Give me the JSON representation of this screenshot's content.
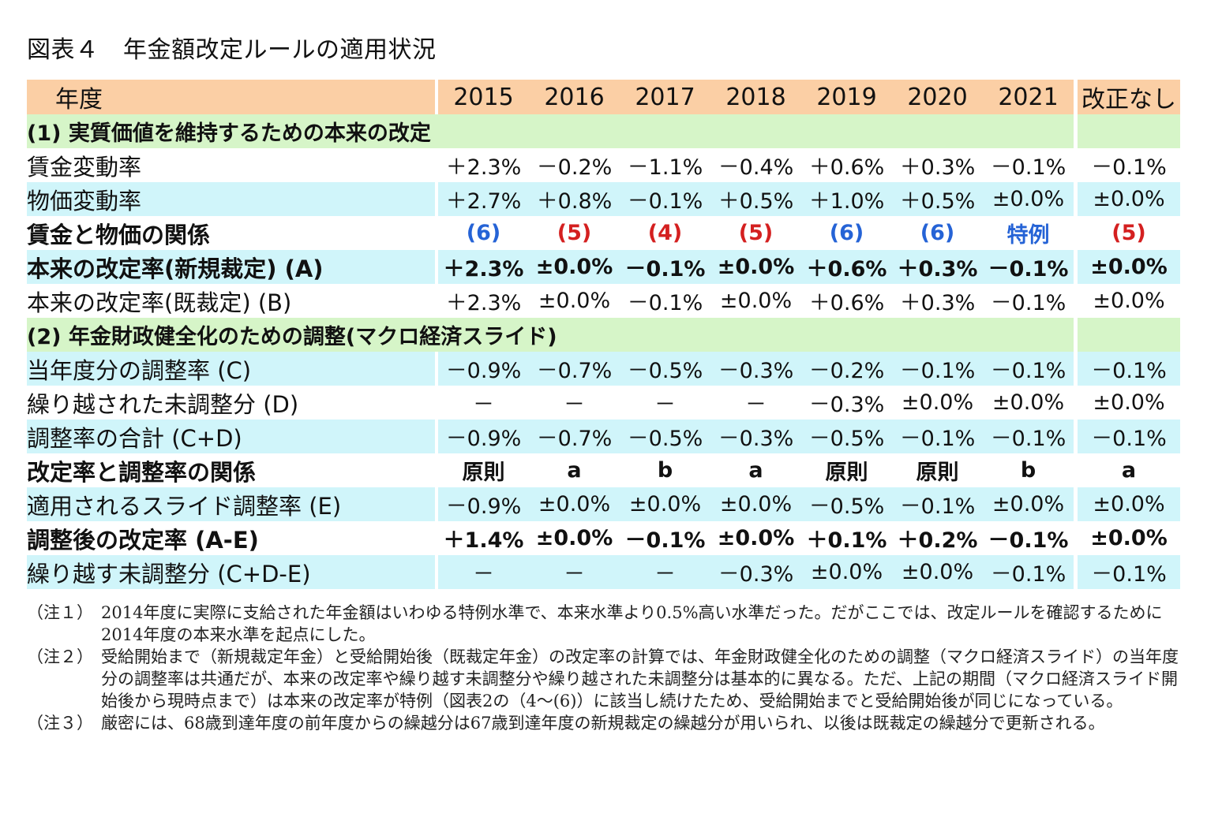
{
  "title": "図表４　年金額改定ルールの適用状況",
  "header": {
    "label": "年度",
    "columns": [
      "2015",
      "2016",
      "2017",
      "2018",
      "2019",
      "2020",
      "2021",
      "改正なし"
    ]
  },
  "section1": "(1) 実質価値を維持するための本来の改定",
  "section2": "(2) 年金財政健全化のための調整(マクロ経済スライド)",
  "rows": [
    {
      "label": "賃金変動率",
      "values": [
        "＋2.3%",
        "－0.2%",
        "－1.1%",
        "－0.4%",
        "＋0.6%",
        "＋0.3%",
        "－0.1%",
        "－0.1%"
      ]
    },
    {
      "label": "物価変動率",
      "values": [
        "＋2.7%",
        "＋0.8%",
        "－0.1%",
        "＋0.5%",
        "＋1.0%",
        "＋0.5%",
        "±0.0%",
        "±0.0%"
      ]
    },
    {
      "label": "賃金と物価の関係",
      "values": [
        "(6)",
        "(5)",
        "(4)",
        "(5)",
        "(6)",
        "(6)",
        "特例",
        "(5)"
      ]
    },
    {
      "label": "本来の改定率(新規裁定) (A)",
      "values": [
        "＋2.3%",
        "±0.0%",
        "－0.1%",
        "±0.0%",
        "＋0.6%",
        "＋0.3%",
        "－0.1%",
        "±0.0%"
      ]
    },
    {
      "label": "本来の改定率(既裁定) (B)",
      "values": [
        "＋2.3%",
        "±0.0%",
        "－0.1%",
        "±0.0%",
        "＋0.6%",
        "＋0.3%",
        "－0.1%",
        "±0.0%"
      ]
    },
    {
      "label": "当年度分の調整率 (C)",
      "values": [
        "－0.9%",
        "－0.7%",
        "－0.5%",
        "－0.3%",
        "－0.2%",
        "－0.1%",
        "－0.1%",
        "－0.1%"
      ]
    },
    {
      "label": "繰り越された未調整分 (D)",
      "values": [
        "－",
        "－",
        "－",
        "－",
        "－0.3%",
        "±0.0%",
        "±0.0%",
        "±0.0%"
      ]
    },
    {
      "label": "調整率の合計 (C+D)",
      "values": [
        "－0.9%",
        "－0.7%",
        "－0.5%",
        "－0.3%",
        "－0.5%",
        "－0.1%",
        "－0.1%",
        "－0.1%"
      ]
    },
    {
      "label": "改定率と調整率の関係",
      "values": [
        "原則",
        "a",
        "b",
        "a",
        "原則",
        "原則",
        "b",
        "a"
      ]
    },
    {
      "label": "適用されるスライド調整率 (E)",
      "values": [
        "－0.9%",
        "±0.0%",
        "±0.0%",
        "±0.0%",
        "－0.5%",
        "－0.1%",
        "±0.0%",
        "±0.0%"
      ]
    },
    {
      "label": "調整後の改定率 (A-E)",
      "values": [
        "＋1.4%",
        "±0.0%",
        "－0.1%",
        "±0.0%",
        "＋0.1%",
        "＋0.2%",
        "－0.1%",
        "±0.0%"
      ]
    },
    {
      "label": "繰り越す未調整分 (C+D-E)",
      "values": [
        "－",
        "－",
        "－",
        "－0.3%",
        "±0.0%",
        "±0.0%",
        "－0.1%",
        "－0.1%"
      ]
    }
  ],
  "notes": [
    {
      "tag": "（注１）",
      "text": "2014年度に実際に支給された年金額はいわゆる特例水準で、本来水準より0.5%高い水準だった。だがここでは、改定ルールを確認するために2014年度の本来水準を起点にした。"
    },
    {
      "tag": "（注２）",
      "text": "受給開始まで（新規裁定年金）と受給開始後（既裁定年金）の改定率の計算では、年金財政健全化のための調整（マクロ経済スライド）の当年度分の調整率は共通だが、本来の改定率や繰り越す未調整分や繰り越された未調整分は基本的に異なる。ただ、上記の期間（マクロ経済スライド開始後から現時点まで）は本来の改定率が特例（図表2の（4～(6)）に該当し続けたため、受給開始までと受給開始後が同じになっている。"
    },
    {
      "tag": "（注３）",
      "text": "厳密には、68歳到達年度の前年度からの繰越分は67歳到達年度の新規裁定の繰越分が用いられ、以後は既裁定の繰越分で更新される。"
    }
  ],
  "colors": {
    "header": "#fbcfa5",
    "section": "#d6f5c8",
    "band": "#d0f5fa",
    "blue": "#2563d6",
    "red": "#d42020"
  }
}
